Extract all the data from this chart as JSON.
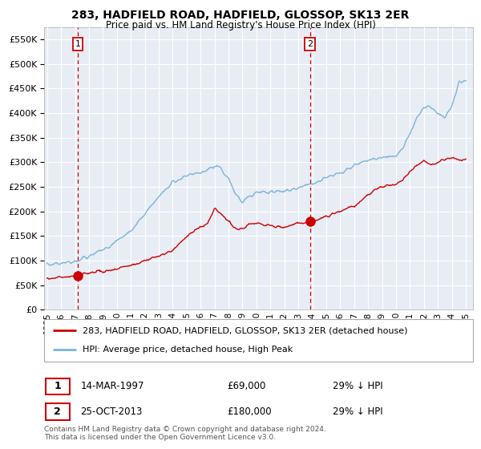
{
  "title": "283, HADFIELD ROAD, HADFIELD, GLOSSOP, SK13 2ER",
  "subtitle": "Price paid vs. HM Land Registry's House Price Index (HPI)",
  "legend_line1": "283, HADFIELD ROAD, HADFIELD, GLOSSOP, SK13 2ER (detached house)",
  "legend_line2": "HPI: Average price, detached house, High Peak",
  "footnote": "Contains HM Land Registry data © Crown copyright and database right 2024.\nThis data is licensed under the Open Government Licence v3.0.",
  "table_rows": [
    {
      "num": "1",
      "date": "14-MAR-1997",
      "price": "£69,000",
      "hpi": "29% ↓ HPI"
    },
    {
      "num": "2",
      "date": "25-OCT-2013",
      "price": "£180,000",
      "hpi": "29% ↓ HPI"
    }
  ],
  "sale1_year": 1997.2,
  "sale1_price": 69000,
  "sale2_year": 2013.83,
  "sale2_price": 180000,
  "vline1_year": 1997.2,
  "vline2_year": 2013.83,
  "hpi_color": "#7ab5d9",
  "price_color": "#cc0000",
  "vline_color": "#cc0000",
  "plot_bg_color": "#e8ecf4",
  "ylim": [
    0,
    575000
  ],
  "xlim_start": 1994.8,
  "xlim_end": 2025.5,
  "yticks": [
    0,
    50000,
    100000,
    150000,
    200000,
    250000,
    300000,
    350000,
    400000,
    450000,
    500000,
    550000
  ],
  "xticks": [
    1995,
    1996,
    1997,
    1998,
    1999,
    2000,
    2001,
    2002,
    2003,
    2004,
    2005,
    2006,
    2007,
    2008,
    2009,
    2010,
    2011,
    2012,
    2013,
    2014,
    2015,
    2016,
    2017,
    2018,
    2019,
    2020,
    2021,
    2022,
    2023,
    2024,
    2025
  ],
  "hpi_knots_x": [
    1995,
    1996,
    1997,
    1998,
    1999,
    2000,
    2001,
    2002,
    2003,
    2004,
    2005,
    2006,
    2007,
    2007.5,
    2008,
    2008.5,
    2009,
    2009.5,
    2010,
    2011,
    2012,
    2013,
    2013.5,
    2014,
    2015,
    2016,
    2017,
    2018,
    2019,
    2020,
    2020.5,
    2021,
    2021.5,
    2022,
    2022.5,
    2023,
    2023.5,
    2024,
    2024.5,
    2025
  ],
  "hpi_knots_y": [
    92000,
    95000,
    100000,
    108000,
    122000,
    140000,
    160000,
    195000,
    230000,
    260000,
    272000,
    278000,
    290000,
    285000,
    265000,
    235000,
    218000,
    230000,
    240000,
    240000,
    242000,
    248000,
    252000,
    258000,
    268000,
    278000,
    292000,
    305000,
    310000,
    312000,
    330000,
    360000,
    390000,
    410000,
    415000,
    400000,
    390000,
    415000,
    460000,
    465000
  ],
  "red_knots_x": [
    1995,
    1995.5,
    1996,
    1996.5,
    1997,
    1997.5,
    1998,
    1999,
    2000,
    2001,
    2002,
    2003,
    2004,
    2005,
    2005.5,
    2006,
    2006.5,
    2007,
    2007.5,
    2008,
    2008.5,
    2009,
    2009.5,
    2010,
    2011,
    2012,
    2013,
    2013.5,
    2014,
    2015,
    2016,
    2017,
    2018,
    2018.5,
    2019,
    2019.5,
    2020,
    2020.5,
    2021,
    2021.5,
    2022,
    2022.5,
    2023,
    2023.5,
    2024,
    2024.5,
    2025
  ],
  "red_knots_y": [
    62000,
    64000,
    65000,
    67000,
    69000,
    72000,
    74000,
    78000,
    84000,
    90000,
    100000,
    110000,
    120000,
    150000,
    160000,
    170000,
    175000,
    205000,
    195000,
    180000,
    165000,
    163000,
    175000,
    175000,
    170000,
    168000,
    175000,
    178000,
    180000,
    190000,
    200000,
    210000,
    235000,
    245000,
    250000,
    255000,
    255000,
    265000,
    280000,
    295000,
    305000,
    295000,
    300000,
    305000,
    310000,
    305000,
    308000
  ]
}
